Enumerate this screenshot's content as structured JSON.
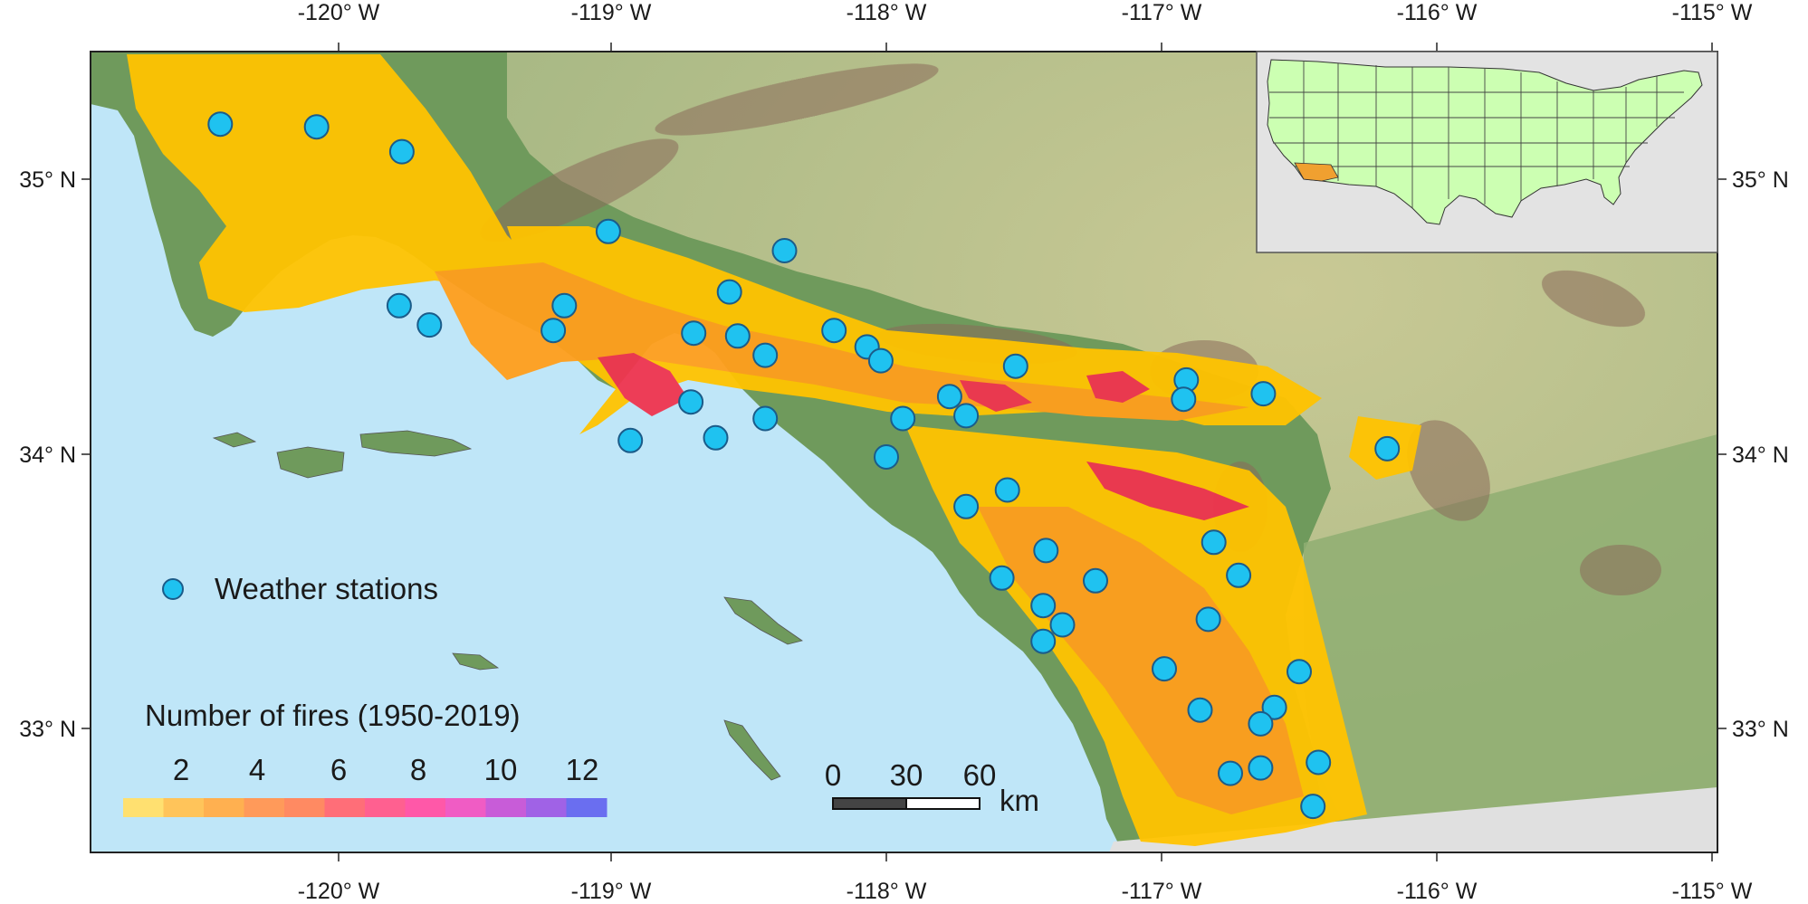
{
  "axes": {
    "lon_labels": [
      "-120° W",
      "-119° W",
      "-118° W",
      "-117° W",
      "-116° W",
      "-115° W"
    ],
    "lat_labels": [
      "35° N",
      "34° N",
      "33° N"
    ]
  },
  "legend": {
    "stations_label": "Weather stations",
    "fires_title": "Number of fires (1950-2019)",
    "fire_ticks": [
      "2",
      "4",
      "6",
      "8",
      "10",
      "12"
    ],
    "fire_colors": [
      "#FFE070",
      "#FFC45A",
      "#FFB050",
      "#FF9A5A",
      "#FF8A62",
      "#FF6E78",
      "#FF6090",
      "#FF58A8",
      "#F05CC4",
      "#C85CD8",
      "#A062E6",
      "#6A6EF0"
    ]
  },
  "scalebar": {
    "ticks": [
      "0",
      "30",
      "60"
    ],
    "unit": "km"
  },
  "colors": {
    "ocean": "#BFE6F8",
    "land": "#6F9A5C",
    "desert": "#B9C58E",
    "mountain": "#8A6A5A",
    "fire_low": "#FFC300",
    "fire_mid": "#FF9F1C",
    "fire_high": "#F0344E",
    "station": "#1FC2F0",
    "inset_states": "#CCFFB2",
    "inset_highlight": "#F0A030",
    "inset_background": "#E3E3E3",
    "mexico": "#E0E0E0"
  },
  "stations": [
    [
      -120.43,
      35.2
    ],
    [
      -120.08,
      35.19
    ],
    [
      -119.77,
      35.1
    ],
    [
      -119.02,
      34.81
    ],
    [
      -119.78,
      34.54
    ],
    [
      -119.67,
      34.47
    ],
    [
      -119.22,
      34.45
    ],
    [
      -119.18,
      34.54
    ],
    [
      -118.58,
      34.59
    ],
    [
      -118.38,
      34.74
    ],
    [
      -118.71,
      34.44
    ],
    [
      -118.55,
      34.43
    ],
    [
      -118.45,
      34.36
    ],
    [
      -118.2,
      34.45
    ],
    [
      -118.08,
      34.39
    ],
    [
      -118.03,
      34.34
    ],
    [
      -118.72,
      34.19
    ],
    [
      -118.94,
      34.05
    ],
    [
      -118.63,
      34.06
    ],
    [
      -118.45,
      34.13
    ],
    [
      -117.95,
      34.13
    ],
    [
      -117.78,
      34.21
    ],
    [
      -117.72,
      34.14
    ],
    [
      -117.54,
      34.32
    ],
    [
      -118.01,
      33.99
    ],
    [
      -117.72,
      33.81
    ],
    [
      -117.57,
      33.87
    ],
    [
      -116.92,
      34.27
    ],
    [
      -116.93,
      34.2
    ],
    [
      -116.64,
      34.22
    ],
    [
      -116.19,
      34.02
    ],
    [
      -117.43,
      33.65
    ],
    [
      -117.59,
      33.55
    ],
    [
      -117.25,
      33.54
    ],
    [
      -116.82,
      33.68
    ],
    [
      -116.73,
      33.56
    ],
    [
      -117.44,
      33.45
    ],
    [
      -117.37,
      33.38
    ],
    [
      -117.44,
      33.32
    ],
    [
      -116.84,
      33.4
    ],
    [
      -117.0,
      33.22
    ],
    [
      -116.51,
      33.21
    ],
    [
      -116.87,
      33.07
    ],
    [
      -116.6,
      33.08
    ],
    [
      -116.65,
      33.02
    ],
    [
      -116.44,
      32.88
    ],
    [
      -116.76,
      32.84
    ],
    [
      -116.65,
      32.86
    ],
    [
      -116.46,
      32.72
    ]
  ]
}
